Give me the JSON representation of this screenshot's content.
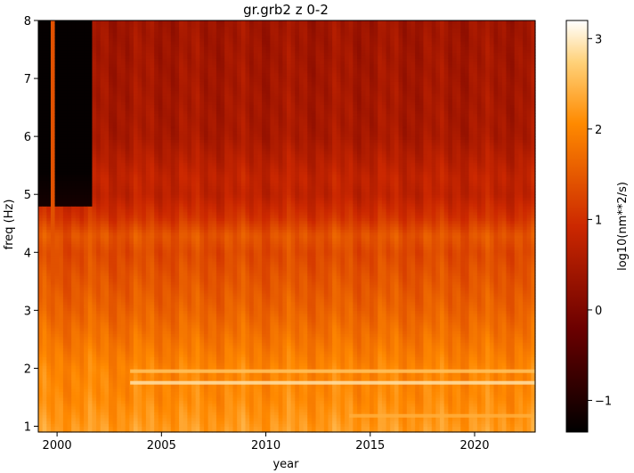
{
  "chart_data": {
    "type": "heatmap",
    "title": "gr.grb2 z 0-2",
    "xlabel": "year",
    "ylabel": "freq (Hz)",
    "xlim": [
      1999.1,
      2022.9
    ],
    "ylim": [
      0.9,
      8.0
    ],
    "x_ticks": [
      2000,
      2005,
      2010,
      2015,
      2020
    ],
    "x_tick_labels": [
      "2000",
      "2005",
      "2010",
      "2015",
      "2020"
    ],
    "y_ticks": [
      1,
      2,
      3,
      4,
      5,
      6,
      7,
      8
    ],
    "y_tick_labels": [
      "1",
      "2",
      "3",
      "4",
      "5",
      "6",
      "7",
      "8"
    ],
    "colorbar": {
      "label": "log10(nm**2/s)",
      "colormap": "gist_heat",
      "range": [
        -1.35,
        3.2
      ],
      "ticks": [
        -1,
        0,
        1,
        2,
        3
      ],
      "tick_labels": [
        "−1",
        "0",
        "1",
        "2",
        "3"
      ]
    },
    "data_gap": {
      "x_range": [
        1999.1,
        2001.75
      ],
      "freq_above": 4.8,
      "note": ""
    },
    "spike_year": 1999.8,
    "intensity_profile": [
      {
        "freq": 0.9,
        "value": 2.25
      },
      {
        "freq": 1.5,
        "value": 2.05
      },
      {
        "freq": 2.0,
        "value": 2.0
      },
      {
        "freq": 2.5,
        "value": 1.8
      },
      {
        "freq": 3.0,
        "value": 1.6
      },
      {
        "freq": 3.5,
        "value": 1.45
      },
      {
        "freq": 4.0,
        "value": 1.3
      },
      {
        "freq": 4.3,
        "value": 1.45
      },
      {
        "freq": 4.6,
        "value": 1.05
      },
      {
        "freq": 5.0,
        "value": 0.75
      },
      {
        "freq": 5.3,
        "value": 0.8
      },
      {
        "freq": 6.0,
        "value": 0.5
      },
      {
        "freq": 7.0,
        "value": 0.45
      },
      {
        "freq": 8.0,
        "value": 0.4
      }
    ],
    "bright_lines": [
      {
        "freq": 1.75,
        "x_start": 2003.5,
        "value": 2.9
      },
      {
        "freq": 1.95,
        "x_start": 2003.5,
        "value": 2.6
      },
      {
        "freq": 1.18,
        "x_start": 2014.0,
        "value": 2.4
      }
    ]
  }
}
